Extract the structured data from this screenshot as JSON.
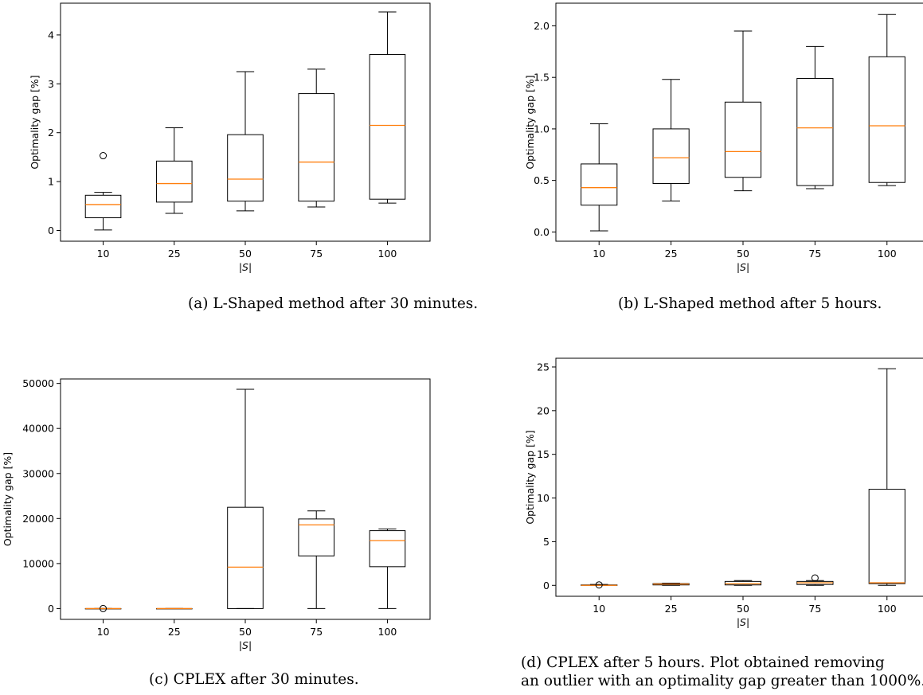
{
  "chart_data": [
    {
      "type": "box",
      "categories": [
        "10",
        "25",
        "50",
        "75",
        "100"
      ],
      "xlabel": "|S|",
      "ylabel": "Optimality gap [%]",
      "ylim": [
        -0.22,
        4.65
      ],
      "yticks": [
        0,
        1,
        2,
        3,
        4
      ],
      "yticklabels": [
        "0",
        "1",
        "2",
        "3",
        "4"
      ],
      "boxes": [
        {
          "whislo": 0.01,
          "q1": 0.26,
          "med": 0.53,
          "q3": 0.72,
          "whishi": 0.78,
          "fliers": [
            1.53
          ]
        },
        {
          "whislo": 0.35,
          "q1": 0.58,
          "med": 0.96,
          "q3": 1.42,
          "whishi": 2.1,
          "fliers": []
        },
        {
          "whislo": 0.4,
          "q1": 0.6,
          "med": 1.05,
          "q3": 1.96,
          "whishi": 3.25,
          "fliers": []
        },
        {
          "whislo": 0.48,
          "q1": 0.6,
          "med": 1.4,
          "q3": 2.8,
          "whishi": 3.3,
          "fliers": []
        },
        {
          "whislo": 0.56,
          "q1": 0.64,
          "med": 2.15,
          "q3": 3.6,
          "whishi": 4.47,
          "fliers": []
        }
      ],
      "caption": "(a) L-Shaped method after 30 minutes."
    },
    {
      "type": "box",
      "categories": [
        "10",
        "25",
        "50",
        "75",
        "100"
      ],
      "xlabel": "|S|",
      "ylabel": "Optimality gap [%]",
      "ylim": [
        -0.09,
        2.22
      ],
      "yticks": [
        0.0,
        0.5,
        1.0,
        1.5,
        2.0
      ],
      "yticklabels": [
        "0.0",
        "0.5",
        "1.0",
        "1.5",
        "2.0"
      ],
      "boxes": [
        {
          "whislo": 0.01,
          "q1": 0.26,
          "med": 0.43,
          "q3": 0.66,
          "whishi": 1.05,
          "fliers": []
        },
        {
          "whislo": 0.3,
          "q1": 0.47,
          "med": 0.72,
          "q3": 1.0,
          "whishi": 1.48,
          "fliers": []
        },
        {
          "whislo": 0.4,
          "q1": 0.53,
          "med": 0.78,
          "q3": 1.26,
          "whishi": 1.95,
          "fliers": []
        },
        {
          "whislo": 0.42,
          "q1": 0.45,
          "med": 1.01,
          "q3": 1.49,
          "whishi": 1.8,
          "fliers": []
        },
        {
          "whislo": 0.45,
          "q1": 0.48,
          "med": 1.03,
          "q3": 1.7,
          "whishi": 2.11,
          "fliers": []
        }
      ],
      "caption": "(b) L-Shaped method after 5 hours."
    },
    {
      "type": "box",
      "categories": [
        "10",
        "25",
        "50",
        "75",
        "100"
      ],
      "xlabel": "|S|",
      "ylabel": "Optimality gap [%]",
      "ylim": [
        -2400,
        51000
      ],
      "yticks": [
        0,
        10000,
        20000,
        30000,
        40000,
        50000
      ],
      "yticklabels": [
        "0",
        "10000",
        "20000",
        "30000",
        "40000",
        "50000"
      ],
      "boxes": [
        {
          "whislo": 0,
          "q1": 0,
          "med": 0,
          "q3": 0,
          "whishi": 0,
          "fliers": [
            0
          ]
        },
        {
          "whislo": 0,
          "q1": 0,
          "med": 0,
          "q3": 0,
          "whishi": 0,
          "fliers": []
        },
        {
          "whislo": 0,
          "q1": 0,
          "med": 9200,
          "q3": 22500,
          "whishi": 48700,
          "fliers": []
        },
        {
          "whislo": 0,
          "q1": 11700,
          "med": 18600,
          "q3": 19900,
          "whishi": 21700,
          "fliers": []
        },
        {
          "whislo": 0,
          "q1": 9300,
          "med": 15100,
          "q3": 17300,
          "whishi": 17700,
          "fliers": []
        }
      ],
      "caption": "(c) CPLEX after 30 minutes."
    },
    {
      "type": "box",
      "categories": [
        "10",
        "25",
        "50",
        "75",
        "100"
      ],
      "xlabel": "|S|",
      "ylabel": "Optimality gap [%]",
      "ylim": [
        -1.25,
        26.0
      ],
      "yticks": [
        0,
        5,
        10,
        15,
        20,
        25
      ],
      "yticklabels": [
        "0",
        "5",
        "10",
        "15",
        "20",
        "25"
      ],
      "boxes": [
        {
          "whislo": 0.0,
          "q1": 0.0,
          "med": 0.0,
          "q3": 0.05,
          "whishi": 0.1,
          "fliers": [
            0.05
          ]
        },
        {
          "whislo": 0.0,
          "q1": 0.05,
          "med": 0.15,
          "q3": 0.2,
          "whishi": 0.25,
          "fliers": []
        },
        {
          "whislo": 0.0,
          "q1": 0.05,
          "med": 0.2,
          "q3": 0.45,
          "whishi": 0.55,
          "fliers": []
        },
        {
          "whislo": 0.0,
          "q1": 0.1,
          "med": 0.3,
          "q3": 0.45,
          "whishi": 0.55,
          "fliers": [
            0.85
          ]
        },
        {
          "whislo": 0.0,
          "q1": 0.2,
          "med": 0.3,
          "q3": 11.0,
          "whishi": 24.8,
          "fliers": []
        }
      ],
      "caption": "(d) CPLEX after 5 hours.  Plot obtained removing an outlier with an optimality gap greater than 1000%."
    }
  ]
}
